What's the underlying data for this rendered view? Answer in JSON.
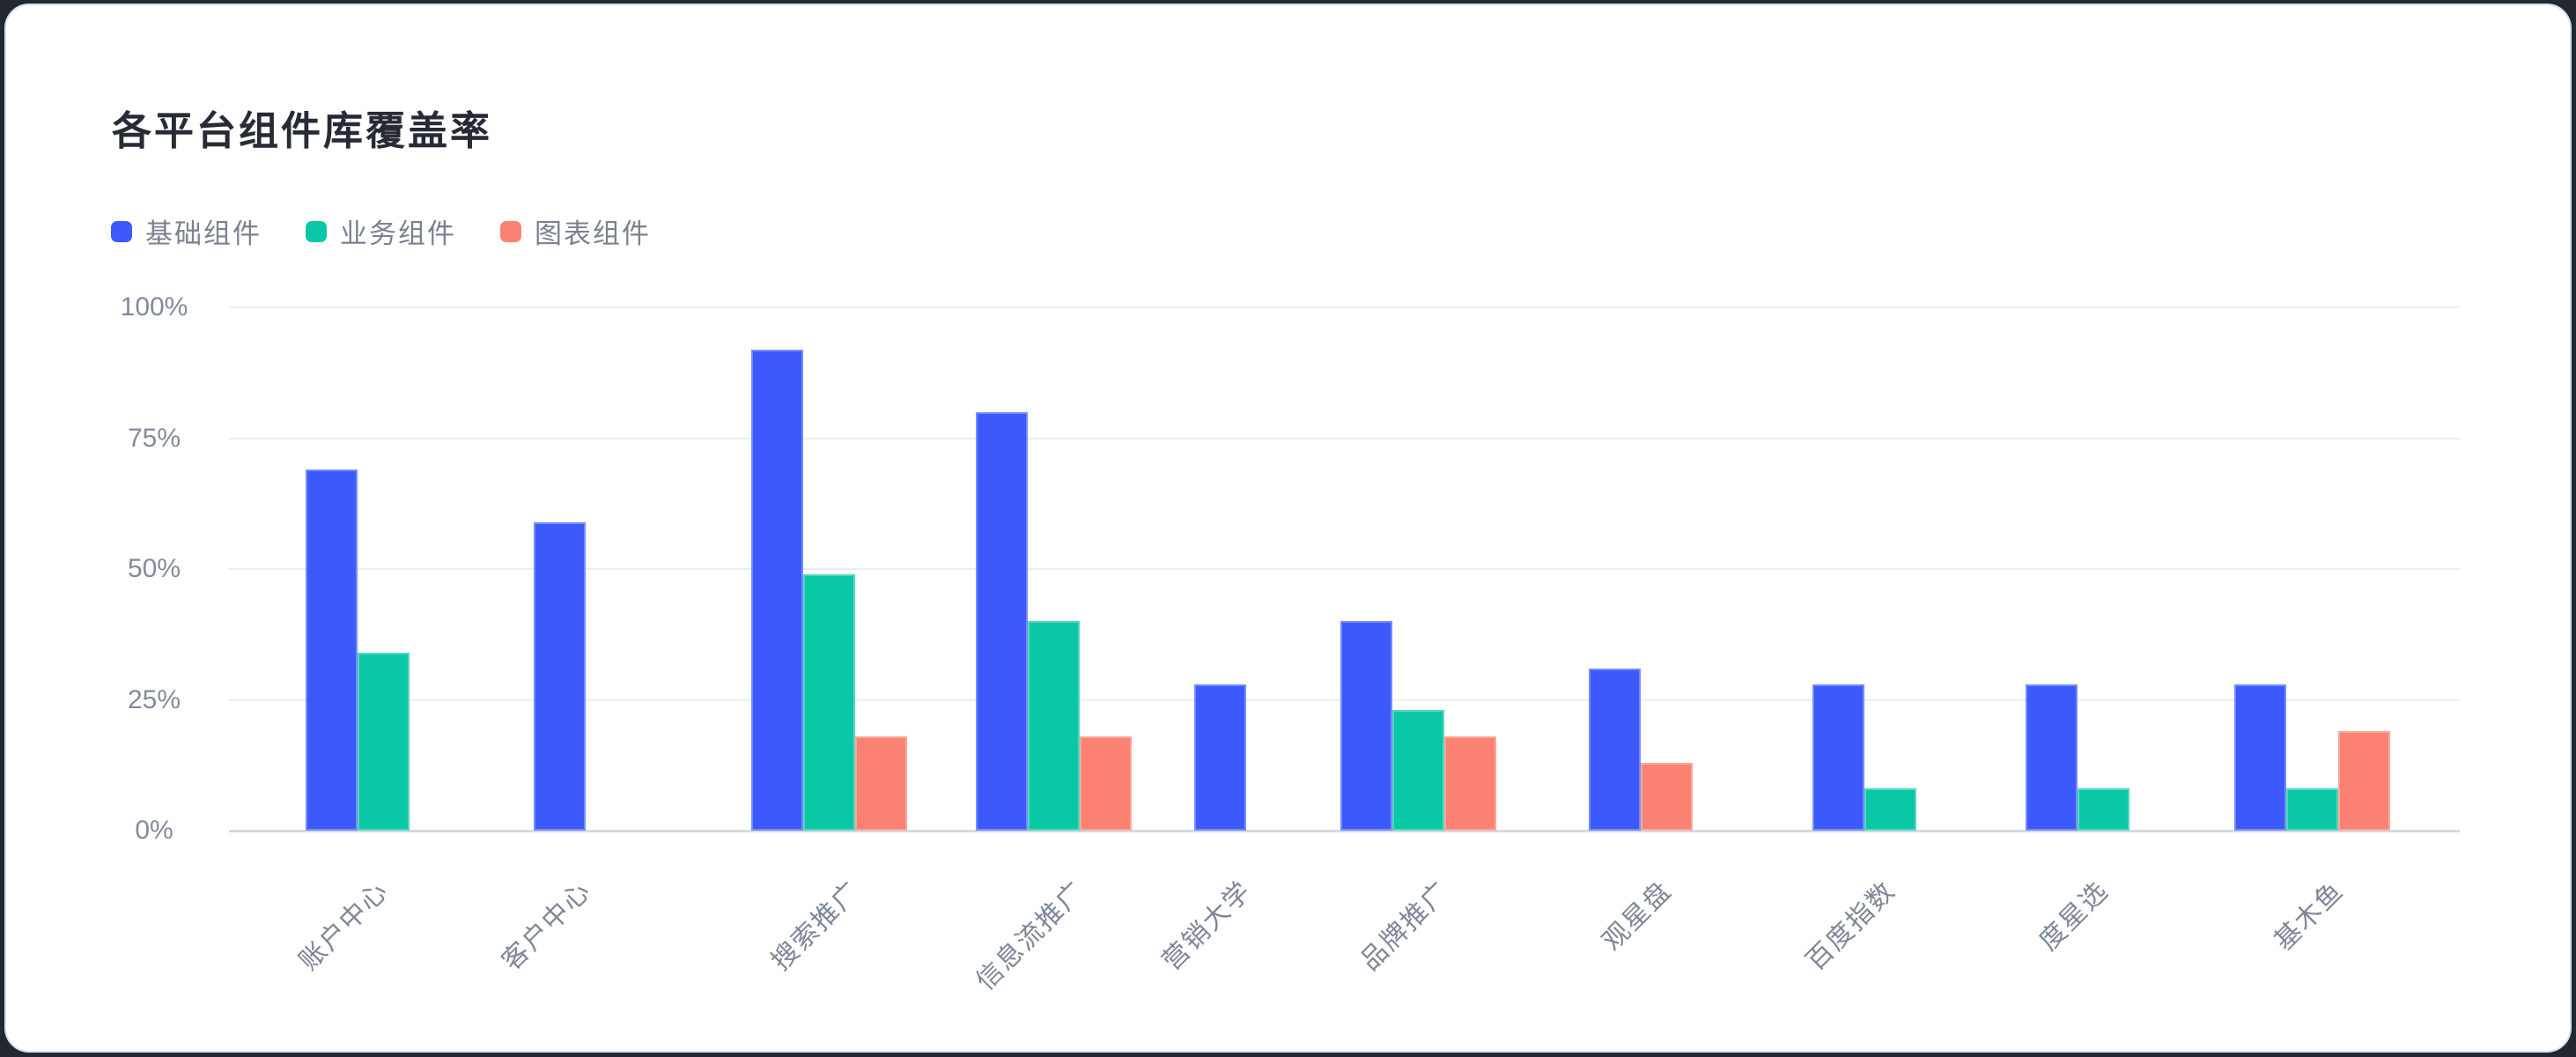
{
  "title": "各平台组件库覆盖率",
  "legend": [
    {
      "label": "基础组件",
      "color": "#3c5afb"
    },
    {
      "label": "业务组件",
      "color": "#0ac8a5"
    },
    {
      "label": "图表组件",
      "color": "#fb8172"
    }
  ],
  "y_axis": {
    "ticks": [
      "100%",
      "75%",
      "50%",
      "25%",
      "0%"
    ]
  },
  "chart_data": {
    "type": "bar",
    "title": "各平台组件库覆盖率",
    "categories": [
      "账户中心",
      "客户中心",
      "搜索推广",
      "信息流推广",
      "营销大学",
      "品牌推广",
      "观星盘",
      "百度指数",
      "度星选",
      "基木鱼"
    ],
    "series": [
      {
        "name": "基础组件",
        "color": "#3c5afb",
        "values": [
          69,
          59,
          92,
          80,
          28,
          40,
          31,
          28,
          28,
          28
        ]
      },
      {
        "name": "业务组件",
        "color": "#0ac8a5",
        "values": [
          34,
          null,
          49,
          40,
          null,
          23,
          null,
          8,
          8,
          8
        ]
      },
      {
        "name": "图表组件",
        "color": "#fb8172",
        "values": [
          null,
          null,
          18,
          18,
          null,
          18,
          13,
          null,
          null,
          19
        ]
      }
    ],
    "ylabel": "",
    "xlabel": "",
    "ylim": [
      0,
      100
    ],
    "y_tick_values": [
      0,
      25,
      50,
      75,
      100
    ],
    "unit": "%",
    "grid": true,
    "legend_position": "top-left",
    "missing_values_skipped": true
  },
  "colors": {
    "card_background": "#ffffff",
    "page_background": "#232731",
    "gridline": "#e9edf4",
    "axis_line": "#d5dae3",
    "title_text": "#262b35",
    "axis_text": "#828b9d",
    "legend_text": "#79828f"
  }
}
